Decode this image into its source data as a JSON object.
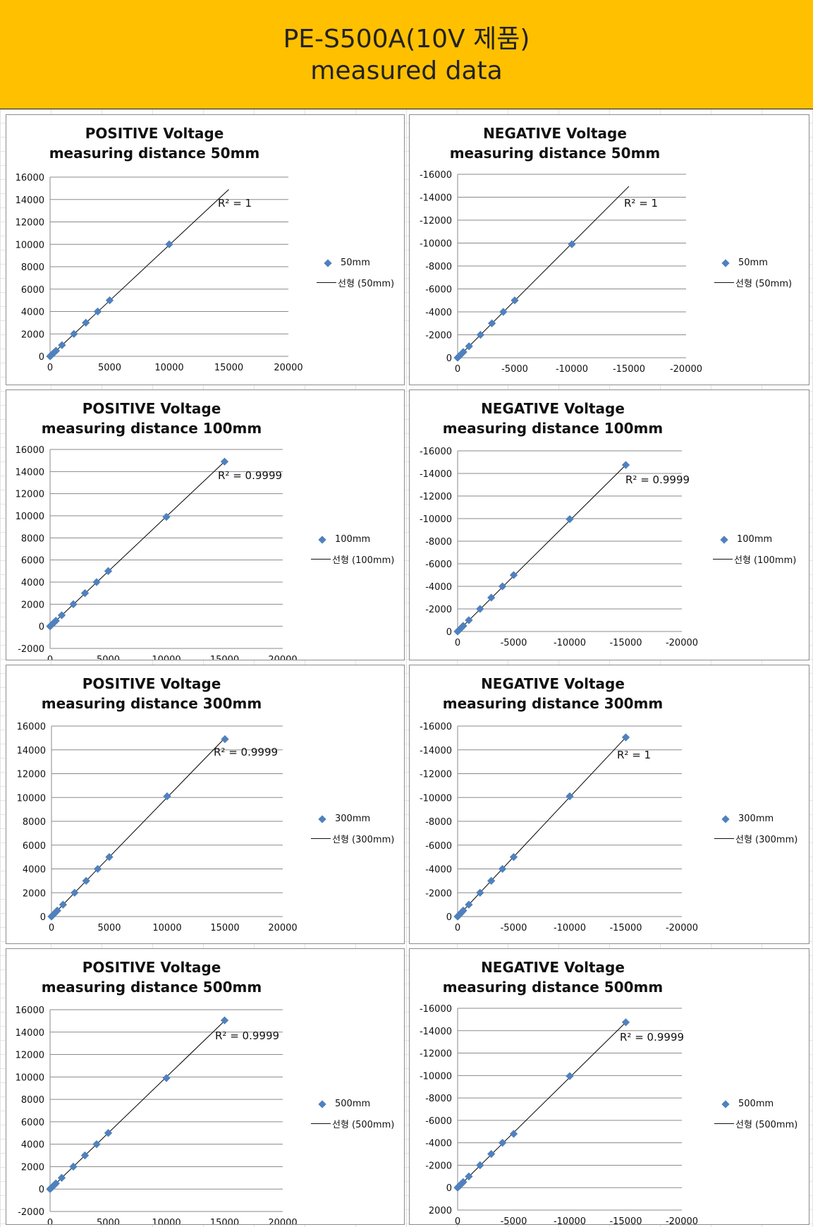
{
  "header": {
    "line1": "PE-S500A(10V 제품)",
    "line2": "measured data"
  },
  "colors": {
    "header_bg": "#ffc000",
    "marker": "#4f81bd",
    "trendline": "#000000",
    "gridline": "#888888"
  },
  "chart_data": [
    {
      "type": "scatter",
      "title_line1": "POSITIVE Voltage",
      "title_line2": "measuring distance 50mm",
      "series_name": "50mm",
      "trend_name": "선형 (50mm)",
      "r2_label": "R² = 1",
      "xlim": [
        0,
        20000
      ],
      "ylim": [
        0,
        16000
      ],
      "x_ticks": [
        "0",
        "5000",
        "10000",
        "15000",
        "20000"
      ],
      "y_ticks": [
        "0",
        "2000",
        "4000",
        "6000",
        "8000",
        "10000",
        "12000",
        "14000",
        "16000"
      ],
      "x": [
        0,
        100,
        200,
        300,
        400,
        500,
        1000,
        2000,
        3000,
        4000,
        5000,
        10000
      ],
      "y": [
        0,
        100,
        200,
        300,
        400,
        500,
        1000,
        2000,
        3000,
        4000,
        5000,
        10000
      ],
      "trend": [
        [
          0,
          0
        ],
        [
          15000,
          14900
        ]
      ]
    },
    {
      "type": "scatter",
      "title_line1": "NEGATIVE Voltage",
      "title_line2": "measuring distance 50mm",
      "series_name": "50mm",
      "trend_name": "선형 (50mm)",
      "r2_label": "R² = 1",
      "xlim": [
        0,
        -20000
      ],
      "ylim": [
        0,
        -16000
      ],
      "x_ticks": [
        "0",
        "-5000",
        "-10000",
        "-15000",
        "-20000"
      ],
      "y_ticks": [
        "0",
        "-2000",
        "-4000",
        "-6000",
        "-8000",
        "-10000",
        "-12000",
        "-14000",
        "-16000"
      ],
      "x": [
        0,
        -100,
        -200,
        -300,
        -400,
        -500,
        -1000,
        -2000,
        -3000,
        -4000,
        -5000,
        -10000
      ],
      "y": [
        0,
        -100,
        -200,
        -300,
        -400,
        -500,
        -1000,
        -2000,
        -3000,
        -4000,
        -5000,
        -9900
      ],
      "trend": [
        [
          0,
          0
        ],
        [
          -15000,
          -14950
        ]
      ]
    },
    {
      "type": "scatter",
      "title_line1": "POSITIVE Voltage",
      "title_line2": "measuring distance 100mm",
      "series_name": "100mm",
      "trend_name": "선형 (100mm)",
      "r2_label": "R² = 0.9999",
      "xlim": [
        0,
        20000
      ],
      "ylim": [
        -2000,
        16000
      ],
      "x_ticks": [
        "0",
        "5000",
        "10000",
        "15000",
        "20000"
      ],
      "y_ticks": [
        "-2000",
        "0",
        "2000",
        "4000",
        "6000",
        "8000",
        "10000",
        "12000",
        "14000",
        "16000"
      ],
      "x": [
        0,
        100,
        200,
        300,
        400,
        500,
        1000,
        2000,
        3000,
        4000,
        5000,
        10000,
        15000
      ],
      "y": [
        0,
        100,
        200,
        300,
        400,
        500,
        1000,
        2000,
        3000,
        4000,
        5000,
        9900,
        14900
      ],
      "trend": [
        [
          0,
          0
        ],
        [
          15000,
          14900
        ]
      ]
    },
    {
      "type": "scatter",
      "title_line1": "NEGATIVE Voltage",
      "title_line2": "measuring distance 100mm",
      "series_name": "100mm",
      "trend_name": "선형 (100mm)",
      "r2_label": "R² = 0.9999",
      "xlim": [
        0,
        -20000
      ],
      "ylim": [
        0,
        -16000
      ],
      "x_ticks": [
        "0",
        "-5000",
        "-10000",
        "-15000",
        "-20000"
      ],
      "y_ticks": [
        "0",
        "-2000",
        "-4000",
        "-6000",
        "-8000",
        "-10000",
        "-12000",
        "-14000",
        "-16000"
      ],
      "x": [
        0,
        -100,
        -200,
        -300,
        -400,
        -500,
        -1000,
        -2000,
        -3000,
        -4000,
        -5000,
        -10000,
        -15000
      ],
      "y": [
        0,
        -100,
        -200,
        -300,
        -400,
        -500,
        -1000,
        -2000,
        -3000,
        -4000,
        -5000,
        -9950,
        -14750
      ],
      "trend": [
        [
          0,
          0
        ],
        [
          -15000,
          -14750
        ]
      ]
    },
    {
      "type": "scatter",
      "title_line1": "POSITIVE Voltage",
      "title_line2": "measuring distance 300mm",
      "series_name": "300mm",
      "trend_name": "선형 (300mm)",
      "r2_label": "R² = 0.9999",
      "xlim": [
        0,
        20000
      ],
      "ylim": [
        0,
        16000
      ],
      "x_ticks": [
        "0",
        "5000",
        "10000",
        "15000",
        "20000"
      ],
      "y_ticks": [
        "0",
        "2000",
        "4000",
        "6000",
        "8000",
        "10000",
        "12000",
        "14000",
        "16000"
      ],
      "x": [
        0,
        100,
        200,
        300,
        400,
        500,
        1000,
        2000,
        3000,
        4000,
        5000,
        10000,
        15000
      ],
      "y": [
        0,
        100,
        200,
        300,
        400,
        500,
        1000,
        2000,
        3000,
        4000,
        5000,
        10100,
        14900
      ],
      "trend": [
        [
          0,
          0
        ],
        [
          15000,
          15000
        ]
      ]
    },
    {
      "type": "scatter",
      "title_line1": "NEGATIVE Voltage",
      "title_line2": "measuring distance 300mm",
      "series_name": "300mm",
      "trend_name": "선형 (300mm)",
      "r2_label": "R² = 1",
      "xlim": [
        0,
        -20000
      ],
      "ylim": [
        0,
        -16000
      ],
      "x_ticks": [
        "0",
        "-5000",
        "-10000",
        "-15000",
        "-20000"
      ],
      "y_ticks": [
        "0",
        "-2000",
        "-4000",
        "-6000",
        "-8000",
        "-10000",
        "-12000",
        "-14000",
        "-16000"
      ],
      "x": [
        0,
        -100,
        -200,
        -300,
        -400,
        -500,
        -1000,
        -2000,
        -3000,
        -4000,
        -5000,
        -10000,
        -15000
      ],
      "y": [
        0,
        -100,
        -200,
        -300,
        -400,
        -500,
        -1000,
        -2000,
        -3000,
        -4000,
        -5000,
        -10100,
        -15050
      ],
      "trend": [
        [
          0,
          0
        ],
        [
          -15000,
          -15050
        ]
      ]
    },
    {
      "type": "scatter",
      "title_line1": "POSITIVE Voltage",
      "title_line2": "measuring distance 500mm",
      "series_name": "500mm",
      "trend_name": "선형 (500mm)",
      "r2_label": "R² = 0.9999",
      "xlim": [
        0,
        20000
      ],
      "ylim": [
        -2000,
        16000
      ],
      "x_ticks": [
        "0",
        "5000",
        "10000",
        "15000",
        "20000"
      ],
      "y_ticks": [
        "-2000",
        "0",
        "2000",
        "4000",
        "6000",
        "8000",
        "10000",
        "12000",
        "14000",
        "16000"
      ],
      "x": [
        0,
        100,
        200,
        300,
        400,
        500,
        1000,
        2000,
        3000,
        4000,
        5000,
        10000,
        15000
      ],
      "y": [
        0,
        100,
        200,
        300,
        400,
        500,
        1000,
        2000,
        3000,
        4000,
        5000,
        9900,
        15050
      ],
      "trend": [
        [
          0,
          0
        ],
        [
          15000,
          15000
        ]
      ]
    },
    {
      "type": "scatter",
      "title_line1": "NEGATIVE Voltage",
      "title_line2": "measuring distance 500mm",
      "series_name": "500mm",
      "trend_name": "선형 (500mm)",
      "r2_label": "R² = 0.9999",
      "xlim": [
        0,
        -20000
      ],
      "ylim": [
        2000,
        -16000
      ],
      "x_ticks": [
        "0",
        "-5000",
        "-10000",
        "-15000",
        "-20000"
      ],
      "y_ticks": [
        "2000",
        "0",
        "-2000",
        "-4000",
        "-6000",
        "-8000",
        "-10000",
        "-12000",
        "-14000",
        "-16000"
      ],
      "x": [
        0,
        -100,
        -200,
        -300,
        -400,
        -500,
        -1000,
        -2000,
        -3000,
        -4000,
        -5000,
        -10000,
        -15000
      ],
      "y": [
        0,
        -100,
        -200,
        -300,
        -400,
        -500,
        -1000,
        -2000,
        -3000,
        -4000,
        -4800,
        -9950,
        -14750
      ],
      "trend": [
        [
          0,
          0
        ],
        [
          -15000,
          -14750
        ]
      ]
    }
  ]
}
